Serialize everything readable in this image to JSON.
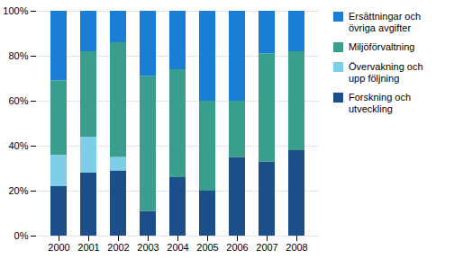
{
  "chart_data": {
    "type": "bar",
    "stacked": true,
    "categories": [
      "2000",
      "2001",
      "2002",
      "2003",
      "2004",
      "2005",
      "2006",
      "2007",
      "2008"
    ],
    "series": [
      {
        "name": "Forskning och\nutveckling",
        "color": "#1c4f8a",
        "values": [
          22,
          28,
          29,
          11,
          26,
          20,
          35,
          33,
          38
        ]
      },
      {
        "name": "Övervakning och\nupp följning",
        "color": "#7ecee8",
        "values": [
          14,
          16,
          6,
          0,
          0,
          0,
          0,
          0,
          0
        ]
      },
      {
        "name": "Miljöförvaltning",
        "color": "#3a9e8c",
        "values": [
          33,
          38,
          51,
          60,
          48,
          40,
          25,
          48,
          44
        ]
      },
      {
        "name": "Ersättningar och\növriga avgifter",
        "color": "#1a7fd4",
        "values": [
          31,
          18,
          14,
          29,
          26,
          40,
          40,
          19,
          18
        ]
      }
    ],
    "ylim": [
      0,
      100
    ],
    "yticks": [
      {
        "value": 0,
        "label": "0%"
      },
      {
        "value": 20,
        "label": "20%"
      },
      {
        "value": 40,
        "label": "40%"
      },
      {
        "value": 60,
        "label": "60%"
      },
      {
        "value": 80,
        "label": "80%"
      },
      {
        "value": 100,
        "label": "100%"
      }
    ],
    "grid": true,
    "legend": "right"
  }
}
